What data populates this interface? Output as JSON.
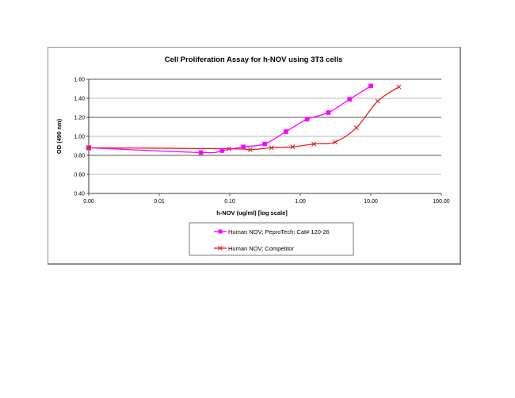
{
  "chart_data": {
    "type": "line",
    "title": "Cell Proliferation Assay for h-NOV using 3T3 cells",
    "xlabel": "h-NOV (ug/ml) [log scale]",
    "ylabel": "OD (490 nm)",
    "xscale": "log",
    "xlim": [
      0.001,
      100
    ],
    "ylim": [
      0.4,
      1.6
    ],
    "x_tick_labels": [
      "0.00",
      "0.01",
      "0.10",
      "1.00",
      "10.00",
      "100.00"
    ],
    "x_tick_values": [
      0.001,
      0.01,
      0.1,
      1,
      10,
      100
    ],
    "y_tick_labels": [
      "0.40",
      "0.60",
      "0.80",
      "1.00",
      "1.20",
      "1.40",
      "1.60"
    ],
    "y_tick_values": [
      0.4,
      0.6,
      0.8,
      1.0,
      1.2,
      1.4,
      1.6
    ],
    "grid": "horizontal",
    "legend_position": "bottom",
    "series": [
      {
        "name": "Human NOV; PeproTech; Cat# 120-26",
        "color": "#ff00ff",
        "marker": "square",
        "x": [
          0.001,
          0.039,
          0.078,
          0.156,
          0.3125,
          0.625,
          1.25,
          2.5,
          5,
          10
        ],
        "values": [
          0.88,
          0.83,
          0.85,
          0.89,
          0.92,
          1.05,
          1.18,
          1.25,
          1.39,
          1.53
        ]
      },
      {
        "name": "Human NOV; Competitor",
        "color": "#e8201c",
        "marker": "x",
        "x": [
          0.001,
          0.098,
          0.195,
          0.39,
          0.78,
          1.5625,
          3.125,
          6.25,
          12.5,
          25
        ],
        "values": [
          0.88,
          0.87,
          0.86,
          0.88,
          0.89,
          0.92,
          0.94,
          1.09,
          1.37,
          1.52
        ]
      }
    ]
  },
  "legend": {
    "items": [
      {
        "label": "Human NOV; PeproTech; Cat# 120-26"
      },
      {
        "label": "Human NOV; Competitor"
      }
    ]
  }
}
